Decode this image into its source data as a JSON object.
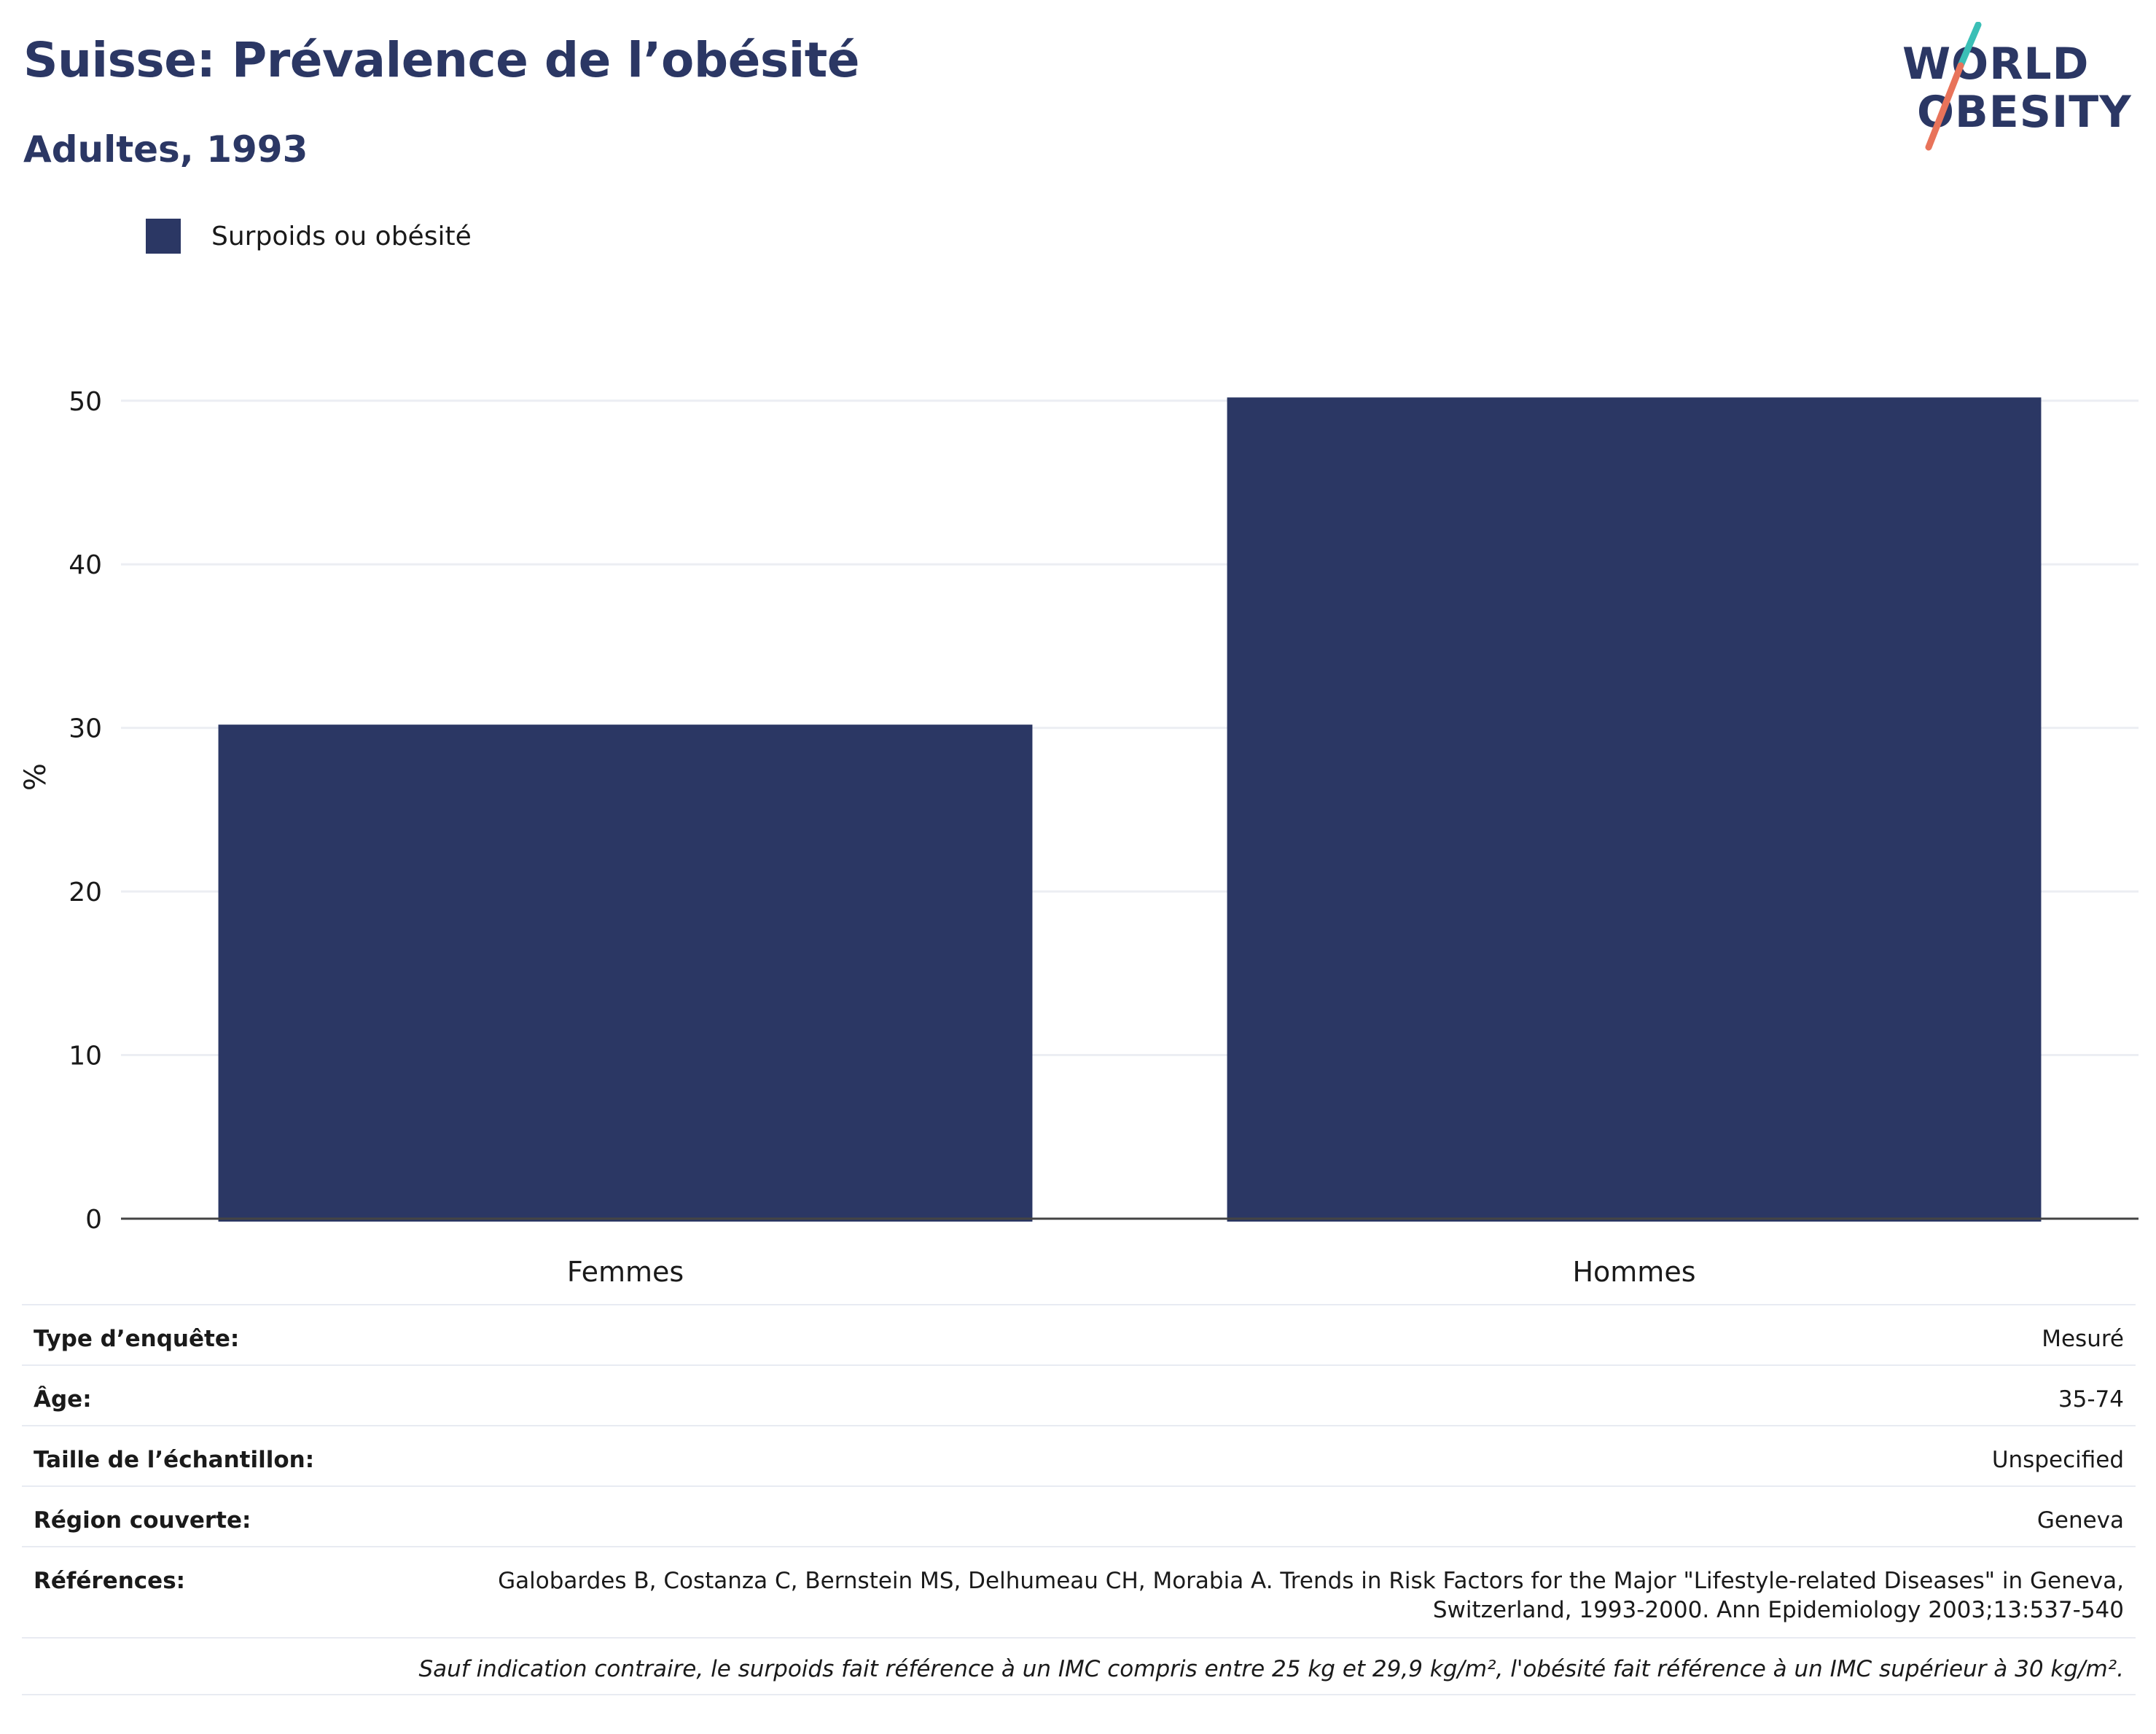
{
  "title": "Suisse: Prévalence de l’obésité",
  "subtitle": "Adultes, 1993",
  "logo": {
    "line1": "WORLD",
    "line2": "OBESITY",
    "text_color": "#2b3764",
    "slash_colors": [
      "#3bbfb6",
      "#e8735a"
    ]
  },
  "colors": {
    "bar": "#2b3764",
    "grid": "#eceef3",
    "axis": "#444444"
  },
  "chart_data": {
    "type": "bar",
    "categories": [
      "Femmes",
      "Hommes"
    ],
    "series": [
      {
        "name": "Surpoids ou obésité",
        "values": [
          30.2,
          50.2
        ]
      }
    ],
    "ylabel": "%",
    "xlabel": "",
    "ylim": [
      0,
      54
    ],
    "yticks": [
      0,
      10,
      20,
      30,
      40,
      50
    ],
    "grid": true,
    "legend": "top-left"
  },
  "info": {
    "rows": [
      {
        "label": "Type d’enquête:",
        "value": "Mesuré"
      },
      {
        "label": "Âge:",
        "value": "35-74"
      },
      {
        "label": "Taille de l’échantillon:",
        "value": "Unspecified"
      },
      {
        "label": "Région couverte:",
        "value": "Geneva"
      },
      {
        "label": "Références:",
        "value": "Galobardes B, Costanza C, Bernstein MS, Delhumeau CH, Morabia A. Trends in Risk Factors for the Major \"Lifestyle-related Diseases\" in Geneva, Switzerland, 1993-2000. Ann Epidemiology 2003;13:537-540"
      }
    ],
    "note": "Sauf indication contraire, le surpoids fait référence à un IMC compris entre 25 kg et 29,9 kg/m², l'obésité fait référence à un IMC supérieur à 30 kg/m²."
  }
}
